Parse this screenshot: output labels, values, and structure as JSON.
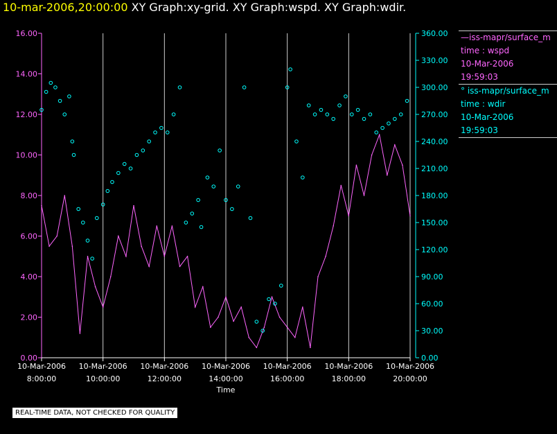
{
  "title": {
    "timestamp": "10-mar-2006,20:00:00",
    "rest": "XY Graph:xy-grid.  XY Graph:wspd.  XY Graph:wdir."
  },
  "colors": {
    "timestamp": "#ffff00",
    "wspd": "#ff66ff",
    "wdir": "#00ffff",
    "left_axis": "#ff66ff",
    "right_axis": "#00ffff",
    "grid": "#cfcfcf"
  },
  "legend": {
    "series1": {
      "name": "—iss-mapr/surface_m",
      "line2": "time : wspd",
      "date": "10-Mar-2006",
      "time": "19:59:03"
    },
    "series2": {
      "name": "°  iss-mapr/surface_m",
      "line2": "time : wdir",
      "date": "10-Mar-2006",
      "time": "19:59:03"
    }
  },
  "notice": "REAL-TIME DATA, NOT CHECKED FOR QUALITY",
  "chart_data": {
    "type": "line",
    "title": "10-mar-2006,20:00:00  XY Graph:xy-grid.  XY Graph:wspd.  XY Graph:wdir.",
    "xlabel": "Time",
    "x_ticks": [
      {
        "date": "10-Mar-2006",
        "time": "8:00:00",
        "hour": 8
      },
      {
        "date": "10-Mar-2006",
        "time": "10:00:00",
        "hour": 10
      },
      {
        "date": "10-Mar-2006",
        "time": "12:00:00",
        "hour": 12
      },
      {
        "date": "10-Mar-2006",
        "time": "14:00:00",
        "hour": 14
      },
      {
        "date": "10-Mar-2006",
        "time": "16:00:00",
        "hour": 16
      },
      {
        "date": "10-Mar-2006",
        "time": "18:00:00",
        "hour": 18
      },
      {
        "date": "10-Mar-2006",
        "time": "20:00:00",
        "hour": 20
      }
    ],
    "xlim_hours": [
      8,
      20
    ],
    "y_left": {
      "ylim": [
        0,
        16
      ],
      "ticks": [
        "0.00",
        "2.00",
        "4.00",
        "6.00",
        "8.00",
        "10.00",
        "12.00",
        "14.00",
        "16.00"
      ]
    },
    "y_right": {
      "ylim": [
        0,
        360
      ],
      "ticks": [
        "0.00",
        "30.00",
        "60.00",
        "90.00",
        "120.00",
        "150.00",
        "180.00",
        "210.00",
        "240.00",
        "270.00",
        "300.00",
        "330.00",
        "360.00"
      ]
    },
    "series": [
      {
        "name": "wspd",
        "axis": "left",
        "style": "line",
        "x_hours": [
          8.0,
          8.25,
          8.5,
          8.75,
          9.0,
          9.25,
          9.5,
          9.75,
          10.0,
          10.25,
          10.5,
          10.75,
          11.0,
          11.25,
          11.5,
          11.75,
          12.0,
          12.25,
          12.5,
          12.75,
          13.0,
          13.25,
          13.5,
          13.75,
          14.0,
          14.25,
          14.5,
          14.75,
          15.0,
          15.25,
          15.5,
          15.75,
          16.0,
          16.25,
          16.5,
          16.75,
          17.0,
          17.25,
          17.5,
          17.75,
          18.0,
          18.25,
          18.5,
          18.75,
          19.0,
          19.25,
          19.5,
          19.75,
          20.0
        ],
        "values": [
          7.5,
          5.5,
          6.0,
          8.0,
          5.5,
          1.2,
          5.0,
          3.5,
          2.5,
          4.0,
          6.0,
          5.0,
          7.5,
          5.5,
          4.5,
          6.5,
          5.0,
          6.5,
          4.5,
          5.0,
          2.5,
          3.5,
          1.5,
          2.0,
          3.0,
          1.8,
          2.5,
          1.0,
          0.5,
          1.5,
          3.0,
          2.0,
          1.5,
          1.0,
          2.5,
          0.5,
          4.0,
          5.0,
          6.5,
          8.5,
          7.0,
          9.5,
          8.0,
          10.0,
          11.0,
          9.0,
          10.5,
          9.5,
          7.0
        ]
      },
      {
        "name": "wdir",
        "axis": "right",
        "style": "circles",
        "x_hours": [
          8.0,
          8.15,
          8.3,
          8.45,
          8.6,
          8.75,
          8.9,
          9.0,
          9.05,
          9.2,
          9.35,
          9.5,
          9.65,
          9.8,
          10.0,
          10.15,
          10.3,
          10.5,
          10.7,
          10.9,
          11.1,
          11.3,
          11.5,
          11.7,
          11.9,
          12.1,
          12.3,
          12.5,
          12.7,
          12.9,
          13.1,
          13.2,
          13.4,
          13.6,
          13.8,
          14.0,
          14.2,
          14.4,
          14.6,
          14.8,
          15.0,
          15.2,
          15.4,
          15.6,
          15.8,
          16.0,
          16.1,
          16.3,
          16.5,
          16.7,
          16.9,
          17.1,
          17.3,
          17.5,
          17.7,
          17.9,
          18.1,
          18.3,
          18.5,
          18.7,
          18.9,
          19.1,
          19.3,
          19.5,
          19.7,
          19.9
        ],
        "values": [
          275,
          295,
          305,
          300,
          285,
          270,
          290,
          240,
          225,
          165,
          150,
          130,
          110,
          155,
          170,
          185,
          195,
          205,
          215,
          210,
          225,
          230,
          240,
          250,
          255,
          250,
          270,
          300,
          150,
          160,
          175,
          145,
          200,
          190,
          230,
          175,
          165,
          190,
          300,
          155,
          40,
          30,
          65,
          60,
          80,
          300,
          320,
          240,
          200,
          280,
          270,
          275,
          270,
          265,
          280,
          290,
          270,
          275,
          265,
          270,
          250,
          255,
          260,
          265,
          270,
          285
        ]
      }
    ]
  }
}
